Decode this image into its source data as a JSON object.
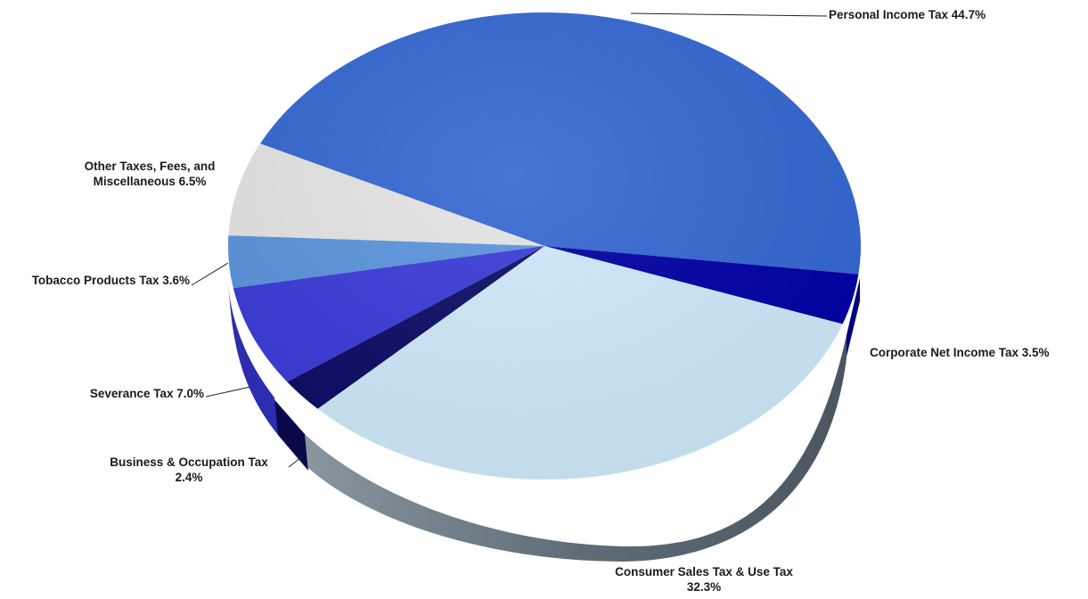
{
  "chart_data": {
    "type": "pie",
    "title": "",
    "slices": [
      {
        "label": "Personal Income Tax",
        "value": 44.7,
        "display": "Personal Income Tax 44.7%",
        "color": "#3467d2"
      },
      {
        "label": "Corporate Net Income Tax",
        "value": 3.5,
        "display": "Corporate Net Income Tax 3.5%",
        "color": "#0000a6"
      },
      {
        "label": "Consumer Sales Tax & Use Tax",
        "value": 32.3,
        "display": "Consumer Sales Tax & Use Tax 32.3%",
        "color": "#cfeafb"
      },
      {
        "label": "Business & Occupation Tax",
        "value": 2.4,
        "display": "Business & Occupation Tax 2.4%",
        "color": "#0c0c66"
      },
      {
        "label": "Severance Tax",
        "value": 7.0,
        "display": "Severance Tax 7.0%",
        "color": "#3a3ad8"
      },
      {
        "label": "Tobacco Products Tax",
        "value": 3.6,
        "display": "Tobacco Products Tax 3.6%",
        "color": "#5a94dc"
      },
      {
        "label": "Other Taxes, Fees, and Miscellaneous",
        "value": 6.5,
        "display": "Other Taxes, Fees, and Miscellaneous 6.5%",
        "color": "#e4e4e4"
      }
    ],
    "legend": "none",
    "style": "3d-exploded-perspective"
  }
}
